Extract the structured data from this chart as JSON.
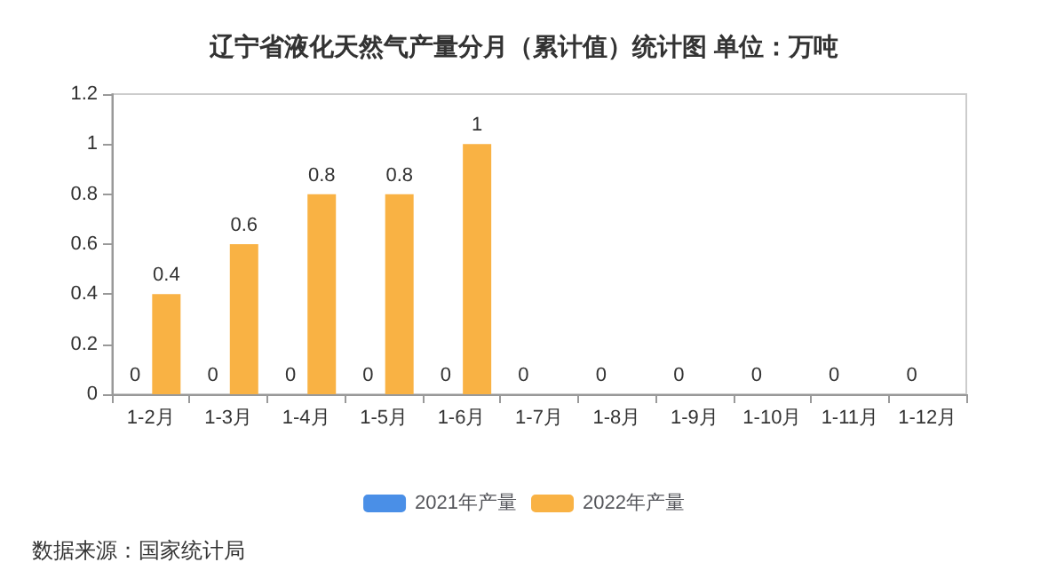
{
  "chart_data": {
    "type": "bar",
    "title": "辽宁省液化天然气产量分月（累计值）统计图 单位：万吨",
    "categories": [
      "1-2月",
      "1-3月",
      "1-4月",
      "1-5月",
      "1-6月",
      "1-7月",
      "1-8月",
      "1-9月",
      "1-10月",
      "1-11月",
      "1-12月"
    ],
    "series": [
      {
        "name": "2021年产量",
        "color": "#4a8fe7",
        "values": [
          0,
          0,
          0,
          0,
          0,
          0,
          0,
          0,
          0,
          0,
          0
        ]
      },
      {
        "name": "2022年产量",
        "color": "#f9b244",
        "values": [
          0.4,
          0.6,
          0.8,
          0.8,
          1,
          null,
          null,
          null,
          null,
          null,
          null
        ]
      }
    ],
    "ylim": [
      0,
      1.2
    ],
    "yticks": [
      0,
      0.2,
      0.4,
      0.6,
      0.8,
      1,
      1.2
    ],
    "grid": false,
    "legend": "bottom",
    "data_labels": true,
    "annotations": [
      "数据来源：国家统计局"
    ]
  }
}
